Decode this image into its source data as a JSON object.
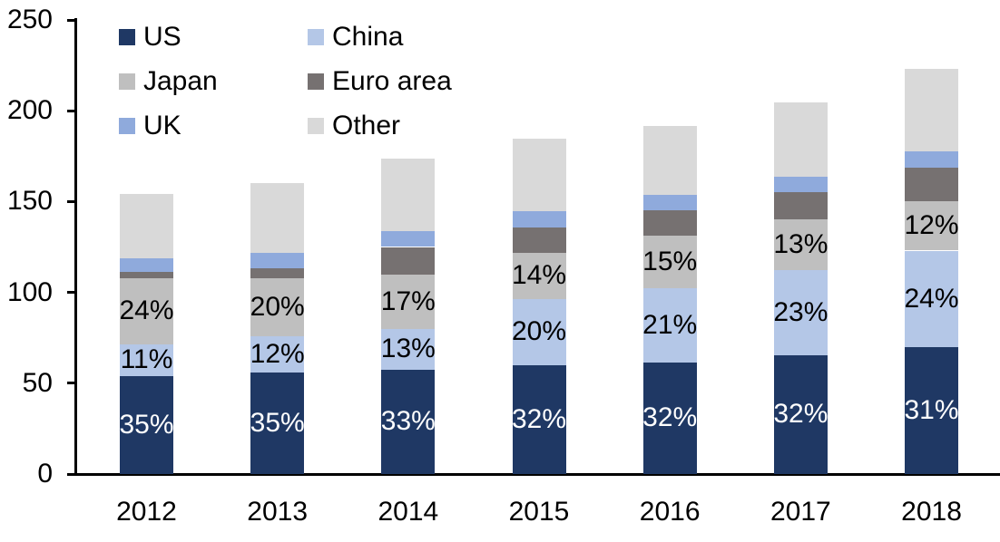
{
  "chart_data": {
    "type": "bar",
    "stacked": true,
    "title": "",
    "xlabel": "",
    "ylabel": "",
    "grid": false,
    "background_color": "#FFFFFF",
    "axis_color": "#000000",
    "categories": [
      "2012",
      "2013",
      "2014",
      "2015",
      "2016",
      "2017",
      "2018"
    ],
    "series": [
      {
        "name": "US",
        "color": "#1F3864",
        "values": [
          54,
          56,
          57.5,
          60,
          61.5,
          65.5,
          70
        ],
        "data_labels": [
          "35%",
          "35%",
          "33%",
          "32%",
          "32%",
          "32%",
          "31%"
        ],
        "data_label_color": "#FFFFFF"
      },
      {
        "name": "China",
        "color": "#B4C7E7",
        "values": [
          17.5,
          20,
          22.5,
          36.5,
          41,
          47,
          53
        ],
        "data_labels": [
          "11%",
          "12%",
          "13%",
          "20%",
          "21%",
          "23%",
          "24%"
        ],
        "data_label_color": "#000000"
      },
      {
        "name": "Japan",
        "color": "#BFBFBF",
        "values": [
          36.5,
          32,
          30,
          25.5,
          28.5,
          27.5,
          27
        ],
        "data_labels": [
          "24%",
          "20%",
          "17%",
          "14%",
          "15%",
          "13%",
          "12%"
        ],
        "data_label_color": "#000000"
      },
      {
        "name": "Euro area",
        "color": "#767171",
        "values": [
          3.5,
          5.5,
          15,
          13.5,
          14,
          15,
          18.5
        ],
        "data_labels": null,
        "data_label_color": null
      },
      {
        "name": "UK",
        "color": "#8FAADC",
        "values": [
          7.5,
          8.5,
          8.5,
          9,
          8.5,
          8.5,
          9
        ],
        "data_labels": null,
        "data_label_color": null
      },
      {
        "name": "Other",
        "color": "#D9D9D9",
        "values": [
          35,
          38,
          40,
          40,
          38,
          41,
          45.5
        ],
        "data_labels": null,
        "data_label_color": null
      }
    ],
    "totals": [
      154,
      160,
      173.5,
      184.5,
      191.5,
      204.5,
      223
    ],
    "y_axis": {
      "min": 0,
      "max": 250,
      "tick_step": 50,
      "tick_labels": [
        "0",
        "50",
        "100",
        "150",
        "200",
        "250"
      ]
    },
    "x_axis": {
      "tick_labels": [
        "2012",
        "2013",
        "2014",
        "2015",
        "2016",
        "2017",
        "2018"
      ]
    },
    "legend": {
      "position": "top-left",
      "columns": 2,
      "items": [
        "US",
        "China",
        "Japan",
        "Euro area",
        "UK",
        "Other"
      ]
    }
  }
}
